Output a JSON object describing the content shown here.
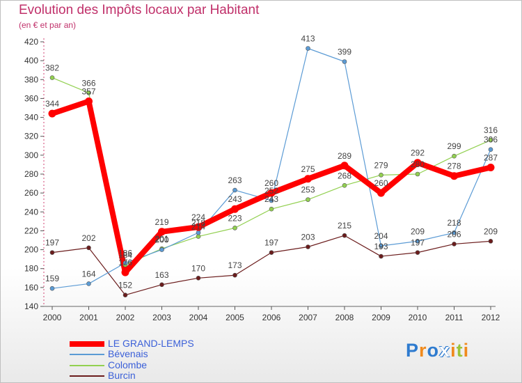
{
  "chart_data": {
    "type": "line",
    "title": "Evolution des Impôts locaux par Habitant",
    "subtitle": "(en € et par an)",
    "xlabel": "",
    "ylabel": "",
    "ylim": [
      140,
      420
    ],
    "yticks": [
      140,
      160,
      180,
      200,
      220,
      240,
      260,
      280,
      300,
      320,
      340,
      360,
      380,
      400,
      420
    ],
    "categories": [
      "2000",
      "2001",
      "2002",
      "2003",
      "2004",
      "2005",
      "2006",
      "2007",
      "2008",
      "2009",
      "2010",
      "2011",
      "2012"
    ],
    "series": [
      {
        "name": "LE GRAND-LEMPS",
        "color": "#ff0000",
        "values": [
          344,
          357,
          176,
          219,
          224,
          243,
          260,
          275,
          289,
          260,
          292,
          278,
          287
        ]
      },
      {
        "name": "Bévenais",
        "color": "#5b9bd5",
        "values": [
          159,
          164,
          186,
          200,
          218,
          263,
          252,
          413,
          399,
          204,
          209,
          218,
          306
        ]
      },
      {
        "name": "Colombe",
        "color": "#92d050",
        "values": [
          382,
          366,
          184,
          201,
          214,
          223,
          243,
          253,
          268,
          279,
          280,
          299,
          316
        ]
      },
      {
        "name": "Burcin",
        "color": "#6b1c1c",
        "values": [
          197,
          202,
          152,
          163,
          170,
          173,
          197,
          203,
          215,
          193,
          197,
          206,
          209
        ]
      }
    ],
    "legend_position": "bottom-left",
    "grid": false
  },
  "logo": {
    "text": "Proxiti",
    "colors": [
      "#2e7bcf",
      "#f08a1d",
      "#2e7bcf",
      "#ffffff",
      "#f08a1d",
      "#9ac43c",
      "#f08a1d"
    ]
  }
}
